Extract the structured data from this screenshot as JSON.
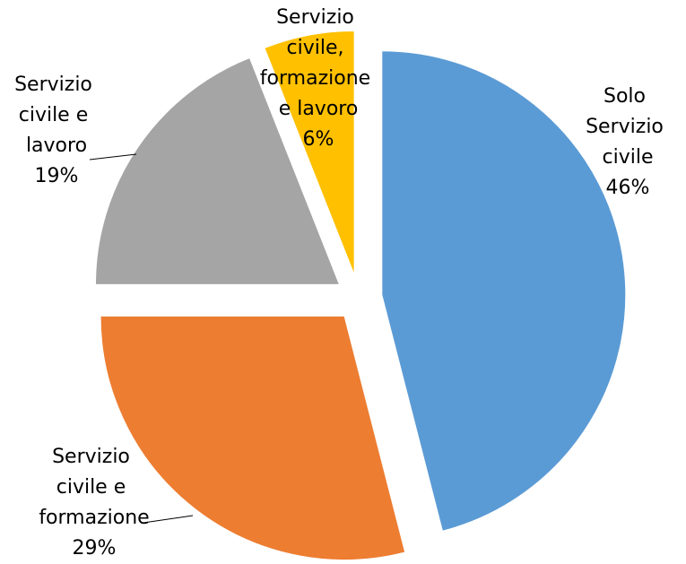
{
  "chart_data": {
    "type": "pie",
    "categories": [
      "Solo Servizio civile",
      "Servizio civile e formazione",
      "Servizio civile e lavoro",
      "Servizio civile, formazione e lavoro"
    ],
    "values": [
      46,
      29,
      19,
      6
    ],
    "value_labels": [
      "46%",
      "29%",
      "19%",
      "6%"
    ],
    "colors": [
      "#5b9bd5",
      "#ed7d31",
      "#a5a5a5",
      "#ffc000"
    ]
  }
}
